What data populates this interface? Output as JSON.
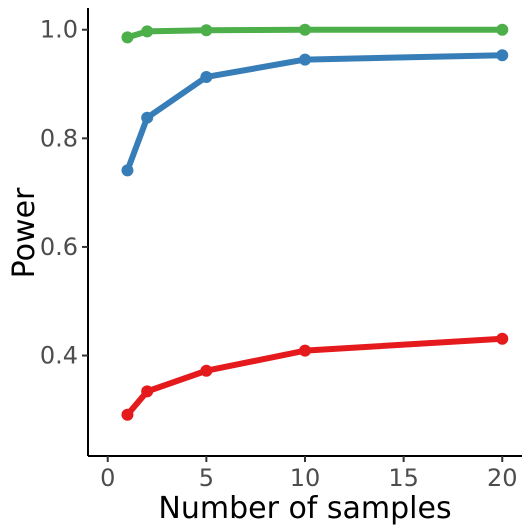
{
  "chart_data": {
    "type": "line",
    "xlabel": "Number of samples",
    "ylabel": "Power",
    "xlim": [
      -1,
      21
    ],
    "ylim": [
      0.215,
      1.04
    ],
    "x_ticks": [
      0,
      5,
      10,
      15,
      20
    ],
    "x_tick_labels": [
      "0",
      "5",
      "10",
      "15",
      "20"
    ],
    "y_ticks": [
      0.4,
      0.6,
      0.8,
      1.0
    ],
    "y_tick_labels": [
      "0.4",
      "0.6",
      "0.8",
      "1.0"
    ],
    "grid": false,
    "legend": "none",
    "series": [
      {
        "color": "#4daf4a",
        "x": [
          1,
          2,
          5,
          10,
          20
        ],
        "y": [
          0.986,
          0.997,
          0.999,
          1.0,
          1.0
        ]
      },
      {
        "color": "#377eb8",
        "x": [
          1,
          2,
          5,
          10,
          20
        ],
        "y": [
          0.741,
          0.838,
          0.913,
          0.945,
          0.953
        ]
      },
      {
        "color": "#e41a1c",
        "x": [
          1,
          2,
          5,
          10,
          20
        ],
        "y": [
          0.291,
          0.334,
          0.372,
          0.409,
          0.431
        ]
      }
    ]
  }
}
